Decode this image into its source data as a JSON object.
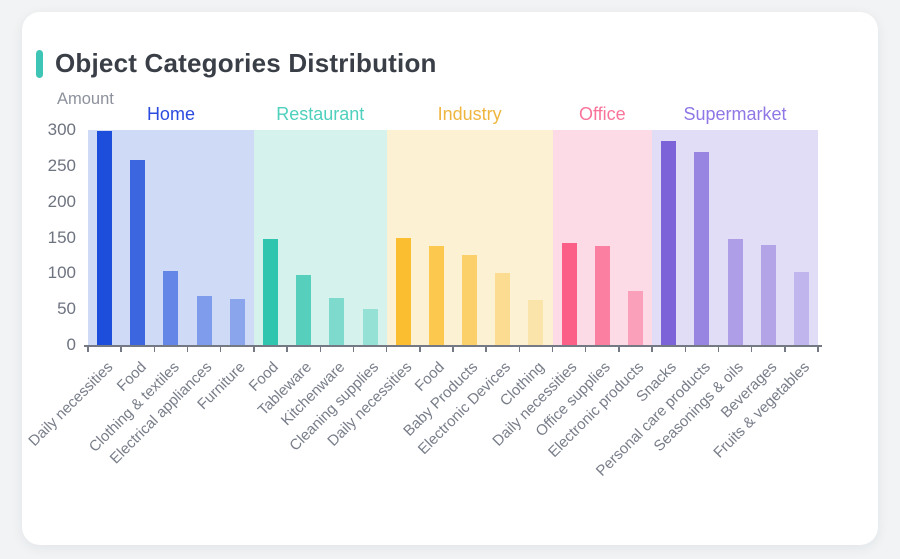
{
  "page": {
    "background_color": "#F1F3F4",
    "card_background": "#FFFFFF",
    "title": "Object Categories Distribution",
    "title_color": "#3A3F47",
    "accent_color": "#3FC5B6"
  },
  "chart_data": {
    "type": "bar",
    "title": "Object Categories Distribution",
    "xlabel": "",
    "ylabel": "Amount",
    "ylim": [
      0,
      300
    ],
    "yticks": [
      300,
      250,
      200,
      150,
      100,
      50,
      0
    ],
    "grid": false,
    "legend_position": "group headers above bands",
    "axis_color": "#757984",
    "y_tick_label_color": "#6E7380",
    "x_tick_label_color": "#787D89",
    "x_label_rotation_deg": 45,
    "groups": [
      {
        "name": "Home",
        "label_color": "#2B4BDF",
        "band_color": "#CFDAF7",
        "bar_color": "#1D4EDB",
        "bars": [
          {
            "label": "Daily necessities",
            "value": 298,
            "opacity": 1
          },
          {
            "label": "Food",
            "value": 258,
            "opacity": 0.83
          },
          {
            "label": "Clothing & textiles",
            "value": 103,
            "opacity": 0.6
          },
          {
            "label": "Electrical appliances",
            "value": 68,
            "opacity": 0.45
          },
          {
            "label": "Furniture",
            "value": 64,
            "opacity": 0.38
          }
        ]
      },
      {
        "name": "Restaurant",
        "label_color": "#4ED0BD",
        "band_color": "#D6F2ED",
        "bar_color": "#2FC5AE",
        "bars": [
          {
            "label": "Food",
            "value": 148,
            "opacity": 1
          },
          {
            "label": "Tableware",
            "value": 97,
            "opacity": 0.77
          },
          {
            "label": "Kitchenware",
            "value": 65,
            "opacity": 0.53
          },
          {
            "label": "Cleaning supplies",
            "value": 50,
            "opacity": 0.38
          }
        ]
      },
      {
        "name": "Industry",
        "label_color": "#EFB63F",
        "band_color": "#FCF1D2",
        "bar_color": "#FBBE30",
        "bars": [
          {
            "label": "Daily necessities",
            "value": 150,
            "opacity": 1
          },
          {
            "label": "Food",
            "value": 138,
            "opacity": 0.82
          },
          {
            "label": "Baby Products",
            "value": 126,
            "opacity": 0.64
          },
          {
            "label": "Electronic Devices",
            "value": 100,
            "opacity": 0.4
          },
          {
            "label": "Clothing",
            "value": 63,
            "opacity": 0.24
          }
        ]
      },
      {
        "name": "Office",
        "label_color": "#F9749A",
        "band_color": "#FCDBE6",
        "bar_color": "#FB5E87",
        "bars": [
          {
            "label": "Daily necessities",
            "value": 142,
            "opacity": 1
          },
          {
            "label": "Office supplies",
            "value": 138,
            "opacity": 0.74
          },
          {
            "label": "Electronic products",
            "value": 75,
            "opacity": 0.47
          }
        ]
      },
      {
        "name": "Supermarket",
        "label_color": "#9077E6",
        "band_color": "#E2DDF6",
        "bar_color": "#7C63D8",
        "bars": [
          {
            "label": "Snacks",
            "value": 285,
            "opacity": 1
          },
          {
            "label": "Personal care products",
            "value": 270,
            "opacity": 0.72
          },
          {
            "label": "Seasonings & oils",
            "value": 148,
            "opacity": 0.52
          },
          {
            "label": "Beverages",
            "value": 140,
            "opacity": 0.46
          },
          {
            "label": "Fruits & vegetables",
            "value": 102,
            "opacity": 0.33
          }
        ]
      }
    ]
  }
}
